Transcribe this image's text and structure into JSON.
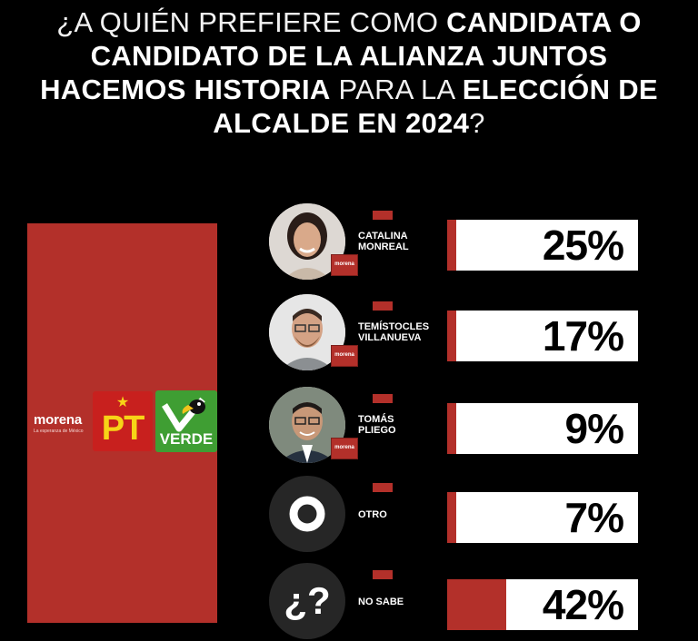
{
  "question": {
    "p1": "¿A QUIÉN PREFIERE COMO ",
    "b1": "CANDIDATA O CANDIDATO DE LA ALIANZA JUNTOS HACEMOS HISTORIA",
    "p2": " PARA LA ",
    "b2": "ELECCIÓN DE ALCALDE EN 2024",
    "p3": "?"
  },
  "alliance": {
    "morena": "morena",
    "morena_tagline": "La esperanza de México",
    "pt": "PT",
    "pt_star": "★",
    "verde": "VERDE"
  },
  "colors": {
    "background": "#000000",
    "party_red": "#b3302a",
    "bar_white": "#ffffff"
  },
  "chart_data": {
    "type": "bar",
    "orientation": "horizontal",
    "categories": [
      "CATALINA MONREAL",
      "TEMÍSTOCLES VILLANUEVA",
      "TOMÁS PLIEGO",
      "OTRO",
      "NO SABE"
    ],
    "values": [
      25,
      17,
      9,
      7,
      42
    ],
    "labels": [
      "25%",
      "17%",
      "9%",
      "7%",
      "42%"
    ],
    "party_badge": "morena",
    "icons": [
      "avatar-photo",
      "avatar-photo",
      "avatar-photo",
      "circle-icon",
      "question-icon"
    ],
    "xlim": [
      0,
      100
    ]
  },
  "rows": [
    {
      "name_l1": "CATALINA",
      "name_l2": "MONREAL",
      "pct": "25%",
      "badge": "morena"
    },
    {
      "name_l1": "TEMÍSTOCLES",
      "name_l2": "VILLANUEVA",
      "pct": "17%",
      "badge": "morena"
    },
    {
      "name_l1": "TOMÁS",
      "name_l2": "PLIEGO",
      "pct": "9%",
      "badge": "morena"
    },
    {
      "name_l1": "OTRO",
      "pct": "7%"
    },
    {
      "name_l1": "NO SABE",
      "pct": "42%",
      "glyph": "¿?"
    }
  ]
}
